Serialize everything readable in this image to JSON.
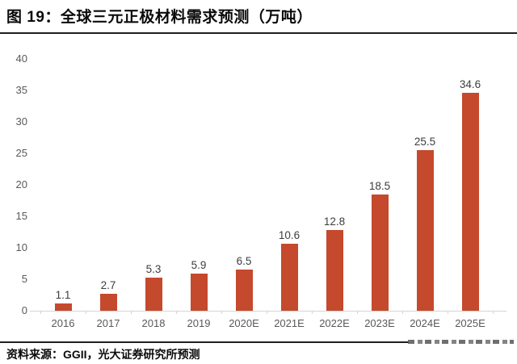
{
  "figure": {
    "title": "图 19：全球三元正极材料需求预测（万吨）",
    "source": "资料来源：GGII，光大证券研究所预测"
  },
  "chart_data": {
    "type": "bar",
    "title": "全球三元正极材料需求预测（万吨）",
    "categories": [
      "2016",
      "2017",
      "2018",
      "2019",
      "2020E",
      "2021E",
      "2022E",
      "2023E",
      "2024E",
      "2025E"
    ],
    "values": [
      1.1,
      2.7,
      5.3,
      5.9,
      6.5,
      10.6,
      12.8,
      18.5,
      25.5,
      34.6
    ],
    "xlabel": "",
    "ylabel": "",
    "ylim": [
      0,
      40
    ],
    "yticks": [
      0,
      5,
      10,
      15,
      20,
      25,
      30,
      35,
      40
    ],
    "grid": false,
    "legend": false,
    "value_labels_shown": true,
    "colors": {
      "bar": "#c5492c",
      "value_label": "#3d3d3d",
      "tick_label": "#595959",
      "axis_line": "#d4d4d4",
      "divider": "#1f1f1f",
      "watermark": "#565656"
    }
  }
}
